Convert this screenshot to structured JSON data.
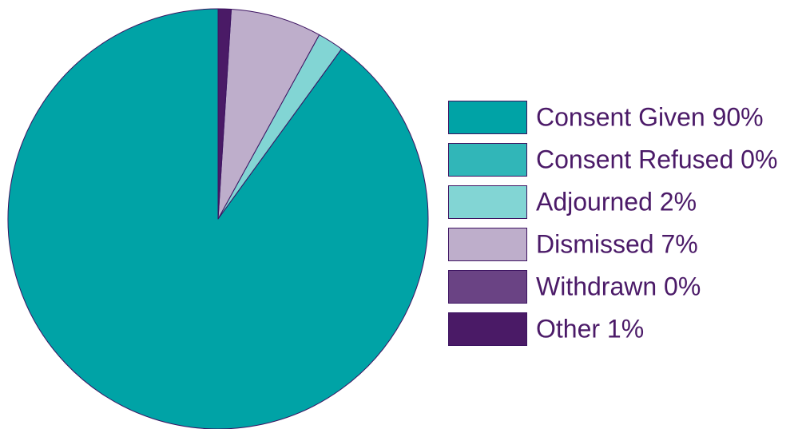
{
  "chart_data": {
    "type": "pie",
    "title": "",
    "legend_position": "right",
    "slices": [
      {
        "label": "Consent Given 90%",
        "value": 90,
        "color": "#00A3A6"
      },
      {
        "label": "Consent Refused 0%",
        "value": 0,
        "color": "#31B6B8"
      },
      {
        "label": "Adjourned 2%",
        "value": 2,
        "color": "#82D5D4"
      },
      {
        "label": "Dismissed 7%",
        "value": 7,
        "color": "#BEAECB"
      },
      {
        "label": "Withdrawn 0%",
        "value": 0,
        "color": "#6A4384"
      },
      {
        "label": "Other 1%",
        "value": 1,
        "color": "#4A1A66"
      }
    ],
    "outline_color": "#3C1361",
    "text_color": "#4B1A68"
  }
}
